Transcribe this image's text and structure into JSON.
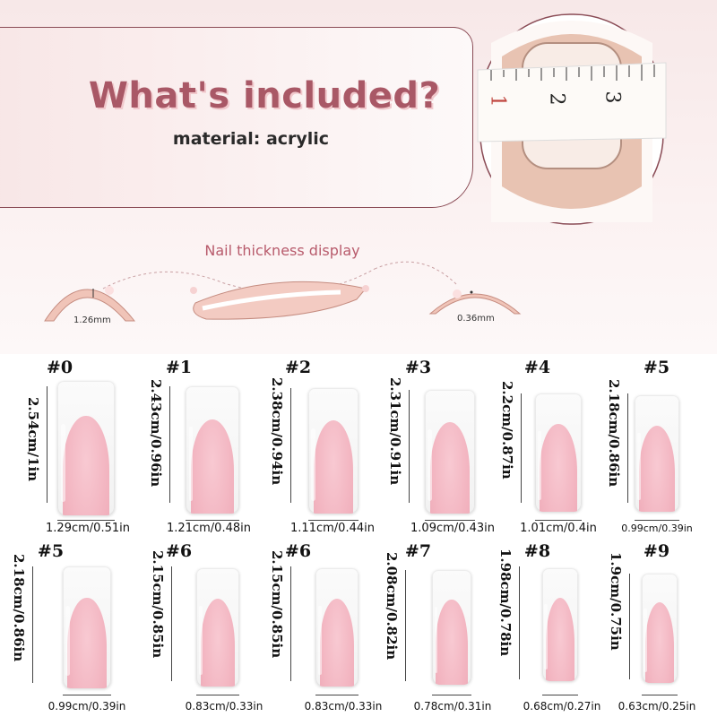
{
  "header": {
    "title": "What's included?",
    "subtitle": "material: acrylic",
    "ruler_ticks": [
      "1",
      "2",
      "3"
    ]
  },
  "thickness": {
    "title": "Nail thickness display",
    "thick_value": "1.26mm",
    "thin_value": "0.36mm"
  },
  "sizes": [
    {
      "no": "#0",
      "length": "2.54cm/1in",
      "width": "1.29cm/0.51in"
    },
    {
      "no": "#1",
      "length": "2.43cm/0.96in",
      "width": "1.21cm/0.48in"
    },
    {
      "no": "#2",
      "length": "2.38cm/0.94in",
      "width": "1.11cm/0.44in"
    },
    {
      "no": "#3",
      "length": "2.31cm/0.91in",
      "width": "1.09cm/0.43in"
    },
    {
      "no": "#4",
      "length": "2.2cm/0.87in",
      "width": "1.01cm/0.4in"
    },
    {
      "no": "#5",
      "length": "2.18cm/0.86in",
      "width": "0.99cm/0.39in"
    },
    {
      "no": "#5",
      "length": "2.18cm/0.86in",
      "width": "0.99cm/0.39in"
    },
    {
      "no": "#6",
      "length": "2.15cm/0.85in",
      "width": "0.83cm/0.33in"
    },
    {
      "no": "#6",
      "length": "2.15cm/0.85in",
      "width": "0.83cm/0.33in"
    },
    {
      "no": "#7",
      "length": "2.08cm/0.82in",
      "width": "0.78cm/0.31in"
    },
    {
      "no": "#8",
      "length": "1.98cm/0.78in",
      "width": "0.68cm/0.27in"
    },
    {
      "no": "#9",
      "length": "1.9cm/0.75in",
      "width": "0.63cm/0.25in"
    }
  ],
  "colors": {
    "title": "#a95866",
    "accent": "#b85b6c",
    "nail_pink": "#f2b3bf"
  }
}
